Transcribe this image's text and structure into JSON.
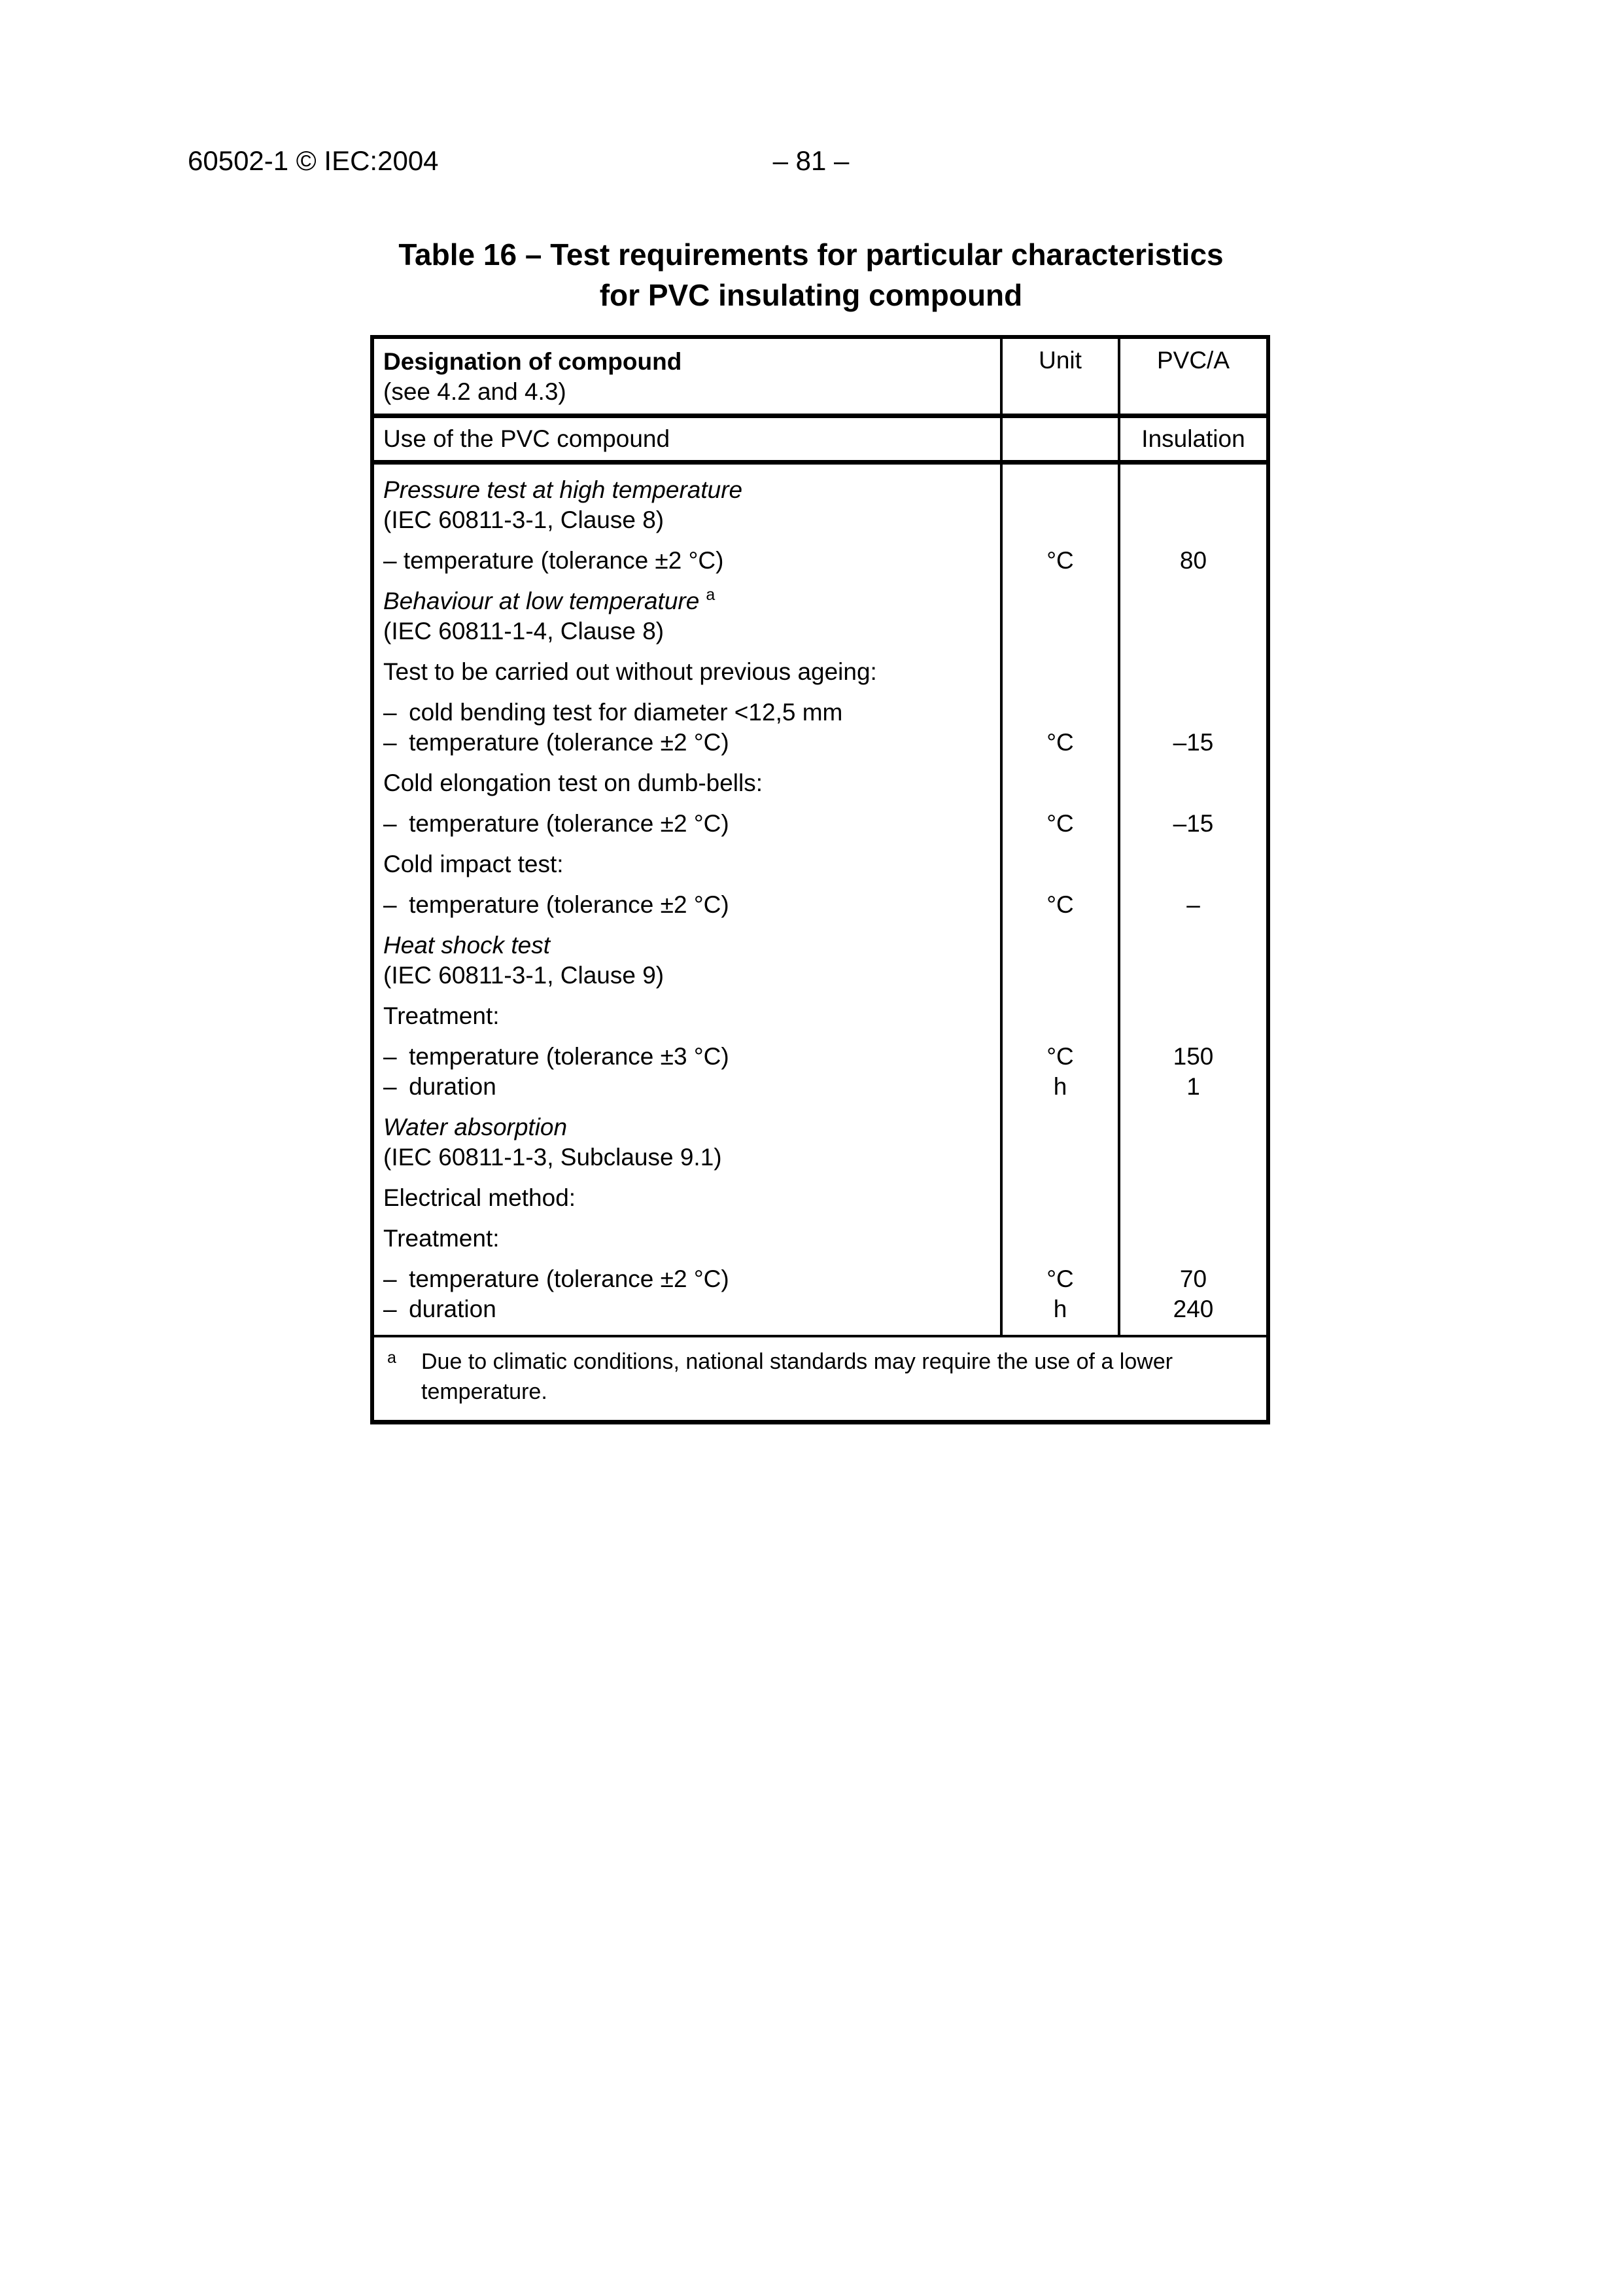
{
  "page": {
    "header_left": "60502-1 © IEC:2004",
    "page_number": "– 81 –",
    "title_line1": "Table 16 – Test requirements for particular characteristics",
    "title_line2": "for PVC insulating compound"
  },
  "table": {
    "header": {
      "row1": {
        "col1_line1": "Designation of compound",
        "col1_line2": "(see 4.2 and 4.3)",
        "col2": "Unit",
        "col3": "PVC/A"
      },
      "row2": {
        "col1": "Use of the PVC compound",
        "col2": "",
        "col3": "Insulation"
      }
    },
    "body_rows": [
      {
        "lines": [
          {
            "text": "Pressure test at high temperature",
            "italic": true
          },
          {
            "text": "(IEC 60811-3-1, Clause 8)"
          }
        ]
      },
      {
        "lines": [
          {
            "text": "– temperature (tolerance ±2 °C)",
            "unit": "°C",
            "value": "80"
          }
        ]
      },
      {
        "lines": [
          {
            "text": "Behaviour at low temperature",
            "italic": true,
            "sup": "a"
          },
          {
            "text": "(IEC 60811-1-4, Clause 8)"
          }
        ]
      },
      {
        "lines": [
          {
            "text": "Test to be carried out without previous ageing:"
          }
        ]
      },
      {
        "lines": [
          {
            "text": "– cold bending test for diameter <12,5 mm"
          },
          {
            "text": "– temperature (tolerance ±2 °C)",
            "unit": "°C",
            "value": "–15"
          }
        ]
      },
      {
        "lines": [
          {
            "text": "Cold elongation test on dumb-bells:"
          }
        ]
      },
      {
        "lines": [
          {
            "text": "– temperature (tolerance ±2 °C)",
            "unit": "°C",
            "value": "–15"
          }
        ]
      },
      {
        "lines": [
          {
            "text": "Cold impact test:"
          }
        ]
      },
      {
        "lines": [
          {
            "text": "– temperature (tolerance ±2 °C)",
            "unit": "°C",
            "value": "–"
          }
        ]
      },
      {
        "lines": [
          {
            "text": "Heat shock test",
            "italic": true
          },
          {
            "text": "(IEC 60811-3-1, Clause 9)"
          }
        ]
      },
      {
        "lines": [
          {
            "text": "Treatment:"
          }
        ]
      },
      {
        "lines": [
          {
            "text": "– temperature (tolerance ±3 °C)",
            "unit": "°C",
            "value": "150"
          },
          {
            "text": "– duration",
            "unit": "h",
            "value": "1"
          }
        ]
      },
      {
        "lines": [
          {
            "text": "Water absorption",
            "italic": true
          },
          {
            "text": "(IEC 60811-1-3, Subclause 9.1)"
          }
        ]
      },
      {
        "lines": [
          {
            "text": "Electrical method:"
          }
        ]
      },
      {
        "lines": [
          {
            "text": "Treatment:"
          }
        ]
      },
      {
        "lines": [
          {
            "text": "– temperature (tolerance ±2 °C)",
            "unit": "°C",
            "value": "70"
          },
          {
            "text": "– duration",
            "unit": "h",
            "value": "240"
          }
        ]
      }
    ],
    "footnote": {
      "marker": "a",
      "text": "Due to climatic conditions, national standards may require the use of a lower temperature."
    }
  }
}
